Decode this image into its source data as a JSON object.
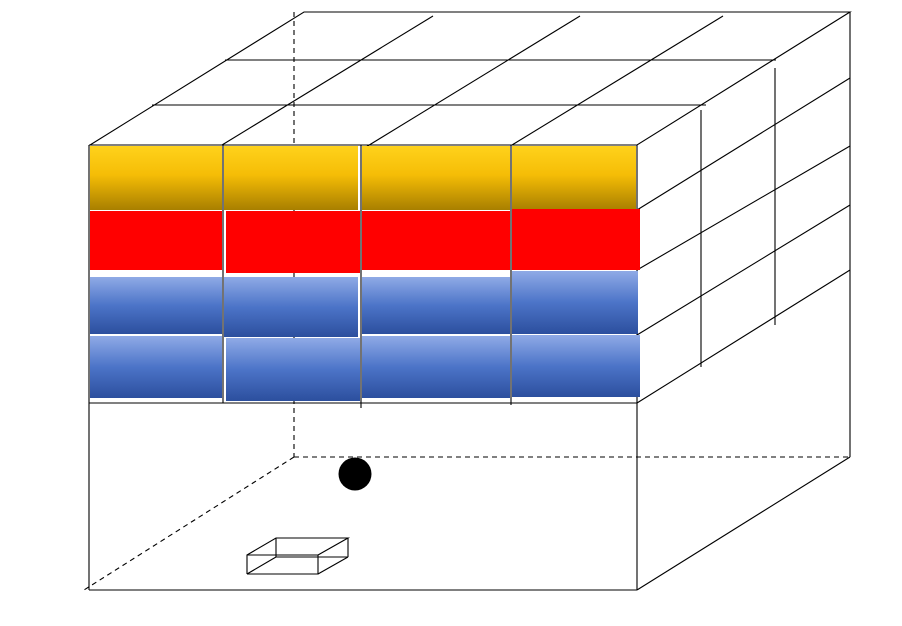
{
  "diagram": {
    "rows": [
      {
        "name": "yellow-layer",
        "color_top": "#FFD21C",
        "color_bottom": "#A87F00"
      },
      {
        "name": "red-layer",
        "color_top": "#FF0000",
        "color_bottom": "#FF0000"
      },
      {
        "name": "blue-layer-upper",
        "color_top": "#8FAAE6",
        "color_bottom": "#2C4F9E"
      },
      {
        "name": "blue-layer-lower",
        "color_top": "#8FAAE6",
        "color_bottom": "#2C4F9E"
      }
    ],
    "columns_per_row": 4,
    "lines": "#000000",
    "circle_color": "#000000"
  }
}
